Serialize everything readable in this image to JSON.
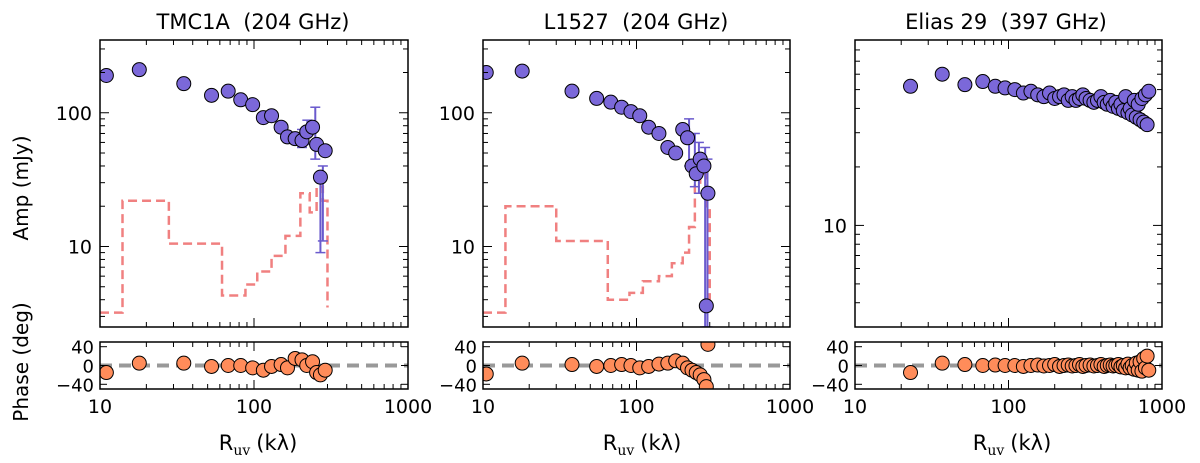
{
  "figure": {
    "ylabel_amp": "Amp (mJy)",
    "ylabel_phase": "Phase (deg)",
    "xlabel_main": "R",
    "xlabel_sub": "uv",
    "xlabel_unit_open": "(k",
    "xlabel_unit_lambda": "λ",
    "xlabel_unit_close": ")"
  },
  "colors": {
    "points": "#7B68D9",
    "errorbars": "#6A5ACD",
    "model": "#F08080",
    "phase_points": "#FF8C5A",
    "zero_line": "#999999",
    "marker_edge": "#000000"
  },
  "chart_data": [
    {
      "type": "scatter",
      "title": "TMC1A  (204 GHz)",
      "xscale": "log",
      "yscale": "log",
      "xlim": [
        10,
        1000
      ],
      "ylim": [
        2.5,
        350
      ],
      "xticks": [
        10,
        100,
        1000
      ],
      "xticklabels": [
        "10",
        "100",
        "1000"
      ],
      "yticks": [
        10,
        100
      ],
      "yticklabels": [
        "10",
        "100"
      ],
      "series": [
        {
          "name": "data",
          "x": [
            11,
            18,
            35,
            53,
            68,
            82,
            98,
            115,
            130,
            150,
            165,
            185,
            205,
            220,
            240,
            255,
            270,
            290
          ],
          "y": [
            190,
            210,
            165,
            135,
            145,
            125,
            115,
            92,
            95,
            78,
            66,
            64,
            62,
            72,
            78,
            58,
            33,
            52
          ]
        },
        {
          "name": "errorbars",
          "x": [
            205,
            222,
            250,
            270,
            280
          ],
          "lo": [
            55,
            58,
            45,
            9,
            11
          ],
          "hi": [
            75,
            88,
            110,
            32,
            40
          ]
        },
        {
          "name": "model",
          "style": "dashed-step",
          "x": [
            10,
            14,
            20,
            28,
            42,
            62,
            88,
            105,
            130,
            160,
            200,
            230,
            255,
            280,
            300
          ],
          "y": [
            3.2,
            22,
            22,
            10.5,
            10.5,
            4.3,
            5.2,
            6.5,
            8.5,
            12,
            25,
            18,
            28,
            22,
            3.5
          ]
        }
      ],
      "phase": {
        "ylim": [
          -50,
          50
        ],
        "yticks": [
          -40,
          0,
          40
        ],
        "yticklabels": [
          "−40",
          "0",
          "40"
        ],
        "x": [
          11,
          18,
          35,
          53,
          68,
          82,
          98,
          115,
          130,
          150,
          165,
          185,
          205,
          220,
          240,
          255,
          270,
          290
        ],
        "y": [
          -15,
          5,
          5,
          -2,
          0,
          0,
          -5,
          -10,
          -2,
          2,
          -5,
          15,
          12,
          0,
          8,
          -15,
          -20,
          -10
        ]
      }
    },
    {
      "type": "scatter",
      "title": "L1527  (204 GHz)",
      "xscale": "log",
      "yscale": "log",
      "xlim": [
        10,
        1000
      ],
      "ylim": [
        2.5,
        350
      ],
      "xticks": [
        10,
        100,
        1000
      ],
      "xticklabels": [
        "10",
        "100",
        "1000"
      ],
      "yticks": [
        10,
        100
      ],
      "yticklabels": [
        "10",
        "100"
      ],
      "series": [
        {
          "name": "data",
          "x": [
            10.5,
            18,
            38,
            55,
            68,
            80,
            92,
            105,
            120,
            140,
            160,
            180,
            200,
            215,
            230,
            245,
            260,
            275,
            285,
            292
          ],
          "y": [
            200,
            205,
            145,
            128,
            120,
            110,
            102,
            95,
            78,
            70,
            55,
            50,
            75,
            65,
            40,
            35,
            45,
            40,
            3.6,
            25
          ]
        },
        {
          "name": "errorbars",
          "x": [
            220,
            240,
            255,
            280,
            290
          ],
          "lo": [
            40,
            28,
            25,
            2.5,
            2.5
          ],
          "hi": [
            90,
            70,
            60,
            55,
            45
          ]
        },
        {
          "name": "model",
          "style": "dashed-step",
          "x": [
            10,
            14,
            20,
            30,
            45,
            65,
            90,
            110,
            140,
            170,
            200,
            220,
            240,
            260,
            285,
            300
          ],
          "y": [
            3.2,
            20,
            20,
            11,
            11,
            4,
            4.5,
            5.5,
            6,
            7.5,
            9,
            14,
            30,
            35,
            20,
            4
          ]
        }
      ],
      "phase": {
        "ylim": [
          -50,
          50
        ],
        "yticks": [
          -40,
          0,
          40
        ],
        "yticklabels": [
          "−40",
          "0",
          "40"
        ],
        "x": [
          10.5,
          18,
          38,
          55,
          68,
          80,
          92,
          105,
          120,
          140,
          160,
          180,
          200,
          215,
          230,
          245,
          260,
          275,
          285,
          292
        ],
        "y": [
          -18,
          5,
          2,
          -2,
          0,
          2,
          0,
          -5,
          -2,
          3,
          5,
          10,
          5,
          -5,
          -10,
          -15,
          -20,
          -30,
          -45,
          45
        ]
      }
    },
    {
      "type": "scatter",
      "title": "Elias 29  (397 GHz)",
      "xscale": "log",
      "yscale": "log",
      "xlim": [
        10,
        1000
      ],
      "ylim": [
        3,
        90
      ],
      "xticks": [
        10,
        100,
        1000
      ],
      "xticklabels": [
        "10",
        "100",
        "1000"
      ],
      "yticks": [
        10
      ],
      "yticklabels": [
        "10"
      ],
      "series": [
        {
          "name": "data",
          "x": [
            23,
            37,
            52,
            68,
            82,
            95,
            110,
            125,
            140,
            155,
            170,
            185,
            200,
            215,
            230,
            245,
            260,
            275,
            290,
            305,
            320,
            340,
            360,
            380,
            400,
            420,
            440,
            460,
            480,
            500,
            520,
            540,
            560,
            580,
            600,
            620,
            640,
            660,
            680,
            700,
            720,
            740,
            760,
            780,
            800,
            820
          ],
          "y": [
            52,
            60,
            53,
            55,
            52,
            51,
            50,
            48,
            49,
            47,
            46,
            48,
            45,
            46,
            47,
            44,
            46,
            44,
            45,
            47,
            45,
            44,
            43,
            44,
            46,
            43,
            42,
            44,
            41,
            43,
            40,
            42,
            39,
            46,
            38,
            40,
            37,
            44,
            36,
            42,
            35,
            45,
            34,
            47,
            33,
            49
          ]
        }
      ],
      "phase": {
        "ylim": [
          -50,
          50
        ],
        "yticks": [
          -40,
          0,
          40
        ],
        "yticklabels": [
          "−40",
          "0",
          "40"
        ],
        "x": [
          23,
          37,
          52,
          68,
          82,
          95,
          110,
          125,
          140,
          155,
          170,
          185,
          200,
          215,
          230,
          245,
          260,
          275,
          290,
          305,
          320,
          340,
          360,
          380,
          400,
          420,
          440,
          460,
          480,
          500,
          520,
          540,
          560,
          580,
          600,
          620,
          640,
          660,
          680,
          700,
          720,
          740,
          760,
          780,
          800,
          820
        ],
        "y": [
          -15,
          5,
          2,
          0,
          1,
          0,
          0,
          -2,
          0,
          1,
          -1,
          0,
          2,
          -2,
          0,
          1,
          -1,
          0,
          2,
          -2,
          0,
          1,
          -1,
          0,
          2,
          -2,
          0,
          1,
          -1,
          0,
          2,
          -3,
          0,
          -5,
          3,
          -5,
          0,
          -8,
          5,
          -10,
          8,
          -12,
          15,
          -5,
          20,
          -10
        ]
      }
    }
  ]
}
